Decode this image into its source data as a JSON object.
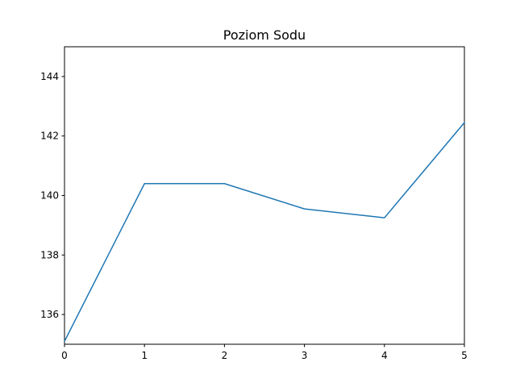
{
  "chart_data": {
    "type": "line",
    "title": "Poziom Sodu",
    "xlabel": "",
    "ylabel": "",
    "xlim": [
      0,
      5
    ],
    "ylim": [
      135,
      145
    ],
    "grid": false,
    "x_ticks": [
      "0",
      "1",
      "2",
      "3",
      "4",
      "5"
    ],
    "y_ticks": [
      "136",
      "138",
      "140",
      "142",
      "144"
    ],
    "series": [
      {
        "color": "#1f77b4",
        "x": [
          0,
          1,
          2,
          3,
          4,
          5
        ],
        "y": [
          135.1,
          140.4,
          140.4,
          139.55,
          139.25,
          142.45
        ]
      }
    ]
  }
}
